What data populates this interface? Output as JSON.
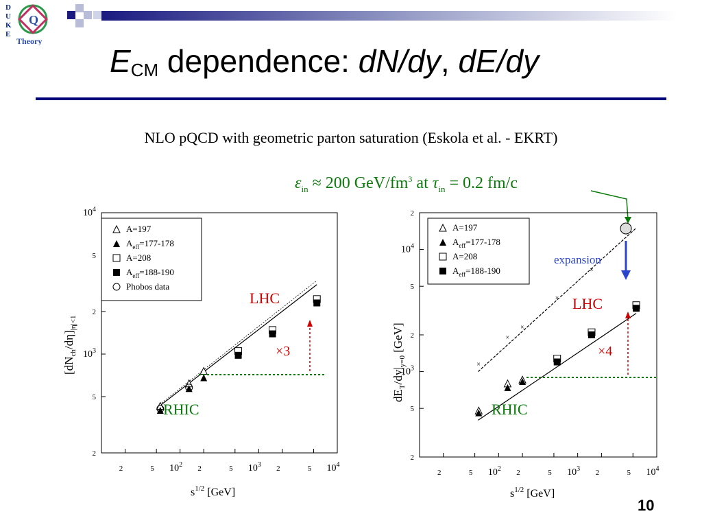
{
  "header": {
    "logo_letters": [
      "D",
      "U",
      "K",
      "E"
    ],
    "logo_text": "Theory"
  },
  "slide": {
    "title_main": "E",
    "title_sub": "CM",
    "title_mid": " dependence: ",
    "title_dn": "dN",
    "title_dy1": "/dy",
    "title_comma": ", ",
    "title_de": "dE",
    "title_dy2": "/dy",
    "subtitle": "NLO pQCD with geometric parton saturation (Eskola et al. - EKRT)",
    "annotation": {
      "eps": "ε",
      "eps_sub": "in",
      "approx": " ≈ 200 GeV/fm",
      "sup": "3",
      "at": " at ",
      "tau": "τ",
      "tau_sub": "in",
      "rest": " = 0.2 fm/c"
    },
    "page_number": "10",
    "colors": {
      "title_rule": "#00007a",
      "annotation": "#0a7a0a",
      "rhic": "#0a7a0a",
      "lhc": "#cc0000",
      "expansion": "#2a44cc"
    }
  },
  "chart_data": [
    {
      "type": "scatter",
      "xscale": "log",
      "yscale": "log",
      "xlim": [
        10,
        10000
      ],
      "ylim": [
        200,
        10000
      ],
      "xlabel": "s^{1/2} [GeV]",
      "ylabel": "[dN_{ch}/dη]_{|η|<1}",
      "x_ticks": [
        "2",
        "5",
        "10^2",
        "2",
        "5",
        "10^3",
        "2",
        "5",
        "10^4"
      ],
      "y_ticks": [
        "2",
        "5",
        "10^3",
        "2",
        "5",
        "10^4"
      ],
      "legend": [
        "A=197",
        "A_eff=177-178",
        "A=208",
        "A_eff=188-190",
        "Phobos data"
      ],
      "legend_position": "top-left",
      "series": [
        {
          "name": "A=197",
          "marker": "open-triangle",
          "x": [
            56,
            130,
            200
          ],
          "y": [
            430,
            620,
            760
          ]
        },
        {
          "name": "A_eff=177-178",
          "marker": "filled-triangle",
          "x": [
            56,
            130,
            200
          ],
          "y": [
            400,
            570,
            680
          ]
        },
        {
          "name": "A=208",
          "marker": "open-square",
          "x": [
            550,
            1500,
            5500
          ],
          "y": [
            1050,
            1480,
            2450
          ]
        },
        {
          "name": "A_eff=188-190",
          "marker": "filled-square",
          "x": [
            550,
            1500,
            5500
          ],
          "y": [
            980,
            1390,
            2300
          ]
        },
        {
          "name": "Phobos data",
          "marker": "open-circle",
          "x": [
            56,
            130
          ],
          "y": [
            410,
            580
          ]
        }
      ],
      "fit_line": {
        "x": [
          55,
          5500
        ],
        "y": [
          430,
          3100
        ]
      },
      "labels": {
        "rhic": "RHIC",
        "lhc": "LHC",
        "factor": "×3"
      }
    },
    {
      "type": "scatter",
      "xscale": "log",
      "yscale": "log",
      "xlim": [
        10,
        10000
      ],
      "ylim": [
        200,
        20000
      ],
      "xlabel": "s^{1/2} [GeV]",
      "ylabel": "dE_T/dy|_{y=0} [GeV]",
      "x_ticks": [
        "2",
        "5",
        "10^2",
        "2",
        "5",
        "10^3",
        "2",
        "5",
        "10^4"
      ],
      "y_ticks": [
        "2",
        "5",
        "10^3",
        "2",
        "5",
        "10^4",
        "2"
      ],
      "legend": [
        "A=197",
        "A_eff=177-178",
        "A=208",
        "A_eff=188-190"
      ],
      "legend_position": "top-left",
      "series": [
        {
          "name": "A=197",
          "marker": "open-triangle",
          "x": [
            56,
            130,
            200
          ],
          "y": [
            480,
            800,
            860
          ]
        },
        {
          "name": "A_eff=177-178",
          "marker": "filled-triangle",
          "x": [
            56,
            130,
            200
          ],
          "y": [
            460,
            740,
            830
          ]
        },
        {
          "name": "A=208",
          "marker": "open-square",
          "x": [
            550,
            1500,
            5500
          ],
          "y": [
            1280,
            2100,
            3500
          ]
        },
        {
          "name": "A_eff=188-190",
          "marker": "filled-square",
          "x": [
            550,
            1500,
            5500
          ],
          "y": [
            1200,
            2000,
            3300
          ]
        },
        {
          "name": "crosses",
          "marker": "cross",
          "x": [
            56,
            130,
            200,
            550,
            1500
          ],
          "y": [
            1150,
            1900,
            2300,
            4000,
            6800
          ]
        }
      ],
      "fit_lines": [
        {
          "x": [
            55,
            5500
          ],
          "y": [
            400,
            3000
          ]
        },
        {
          "x": [
            55,
            5500
          ],
          "y": [
            1000,
            15000
          ]
        }
      ],
      "labels": {
        "rhic": "RHIC",
        "lhc": "LHC",
        "factor": "×4",
        "expansion": "expansion"
      }
    }
  ]
}
